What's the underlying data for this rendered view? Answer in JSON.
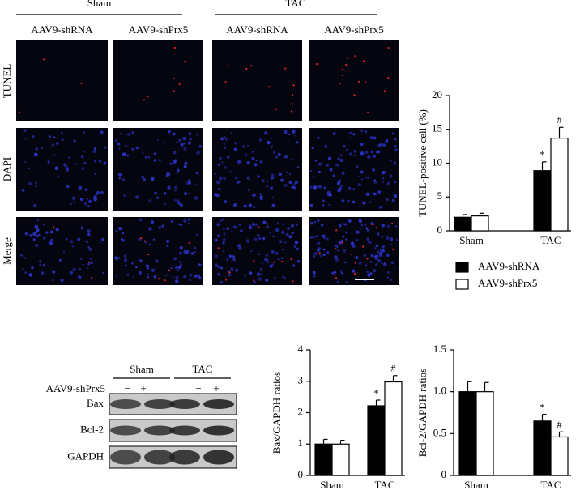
{
  "microscopy": {
    "groups": [
      "Sham",
      "TAC"
    ],
    "columns": [
      "AAV9-shRNA",
      "AAV9-shPrx5",
      "AAV9-shRNA",
      "AAV9-shPrx5"
    ],
    "rows": [
      "TUNEL",
      "DAPI",
      "Merge"
    ]
  },
  "blot": {
    "groups": [
      "Sham",
      "TAC"
    ],
    "treatment_label": "AAV9-shPrx5",
    "treatment": [
      "−",
      "+",
      "−",
      "+"
    ],
    "bands": [
      "Bax",
      "Bcl-2",
      "GAPDH"
    ]
  },
  "chart_data": [
    {
      "type": "bar",
      "y_label": "TUNEL-positive cell (%)",
      "categories": [
        "Sham",
        "TAC"
      ],
      "ylim": [
        0,
        20
      ],
      "yticks": [
        0,
        5,
        10,
        15,
        20
      ],
      "legend": "below",
      "series": [
        {
          "name": "AAV9-shRNA",
          "color": "#000000",
          "values": [
            2.0,
            8.9
          ],
          "errors": [
            0.4,
            1.3
          ],
          "annotations": [
            null,
            "*"
          ]
        },
        {
          "name": "AAV9-shPrx5",
          "color": "#ffffff",
          "values": [
            2.2,
            13.7
          ],
          "errors": [
            0.4,
            1.6
          ],
          "annotations": [
            null,
            "#"
          ]
        }
      ]
    },
    {
      "type": "bar",
      "y_label": "Bax/GAPDH ratios",
      "categories": [
        "Sham",
        "TAC"
      ],
      "ylim": [
        0,
        4
      ],
      "yticks": [
        0,
        1,
        2,
        3,
        4
      ],
      "series": [
        {
          "color": "#000000",
          "values": [
            1.0,
            2.22
          ],
          "errors": [
            0.15,
            0.18
          ],
          "annotations": [
            null,
            "*"
          ]
        },
        {
          "color": "#ffffff",
          "values": [
            1.0,
            2.98
          ],
          "errors": [
            0.12,
            0.2
          ],
          "annotations": [
            null,
            "#"
          ]
        }
      ]
    },
    {
      "type": "bar",
      "y_label": "Bcl-2/GAPDH ratios",
      "categories": [
        "Sham",
        "TAC"
      ],
      "ylim": [
        0,
        1.5
      ],
      "yticks": [
        0,
        0.5,
        {
          "value": 1,
          "label": "1.0"
        },
        1.5
      ],
      "series": [
        {
          "color": "#000000",
          "values": [
            1.0,
            0.65
          ],
          "errors": [
            0.12,
            0.08
          ],
          "annotations": [
            null,
            "*"
          ]
        },
        {
          "color": "#ffffff",
          "values": [
            1.0,
            0.46
          ],
          "errors": [
            0.11,
            0.06
          ],
          "annotations": [
            null,
            "#"
          ]
        }
      ]
    }
  ]
}
